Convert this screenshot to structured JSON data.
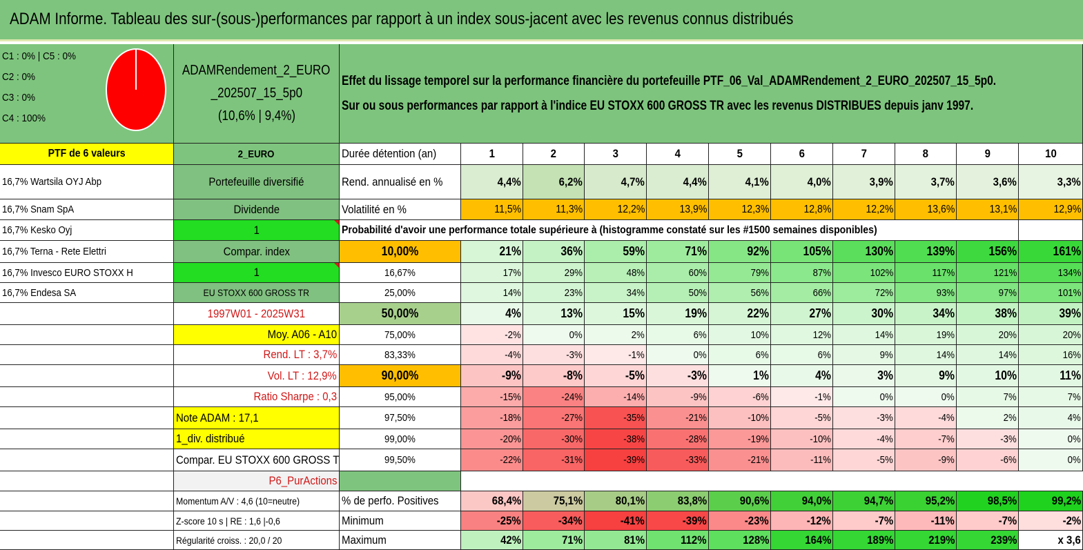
{
  "title": "ADAM Informe. Tableau des sur-(sous-)performances par rapport à un index sous-jacent avec les revenus connus distribués",
  "colors": {
    "header_green": "#7ec47e",
    "mid_green": "#80c080",
    "bright_green": "#22dd22",
    "yellow": "#ffff00",
    "orange": "#ffbf00",
    "pie_red": "#ff0000"
  },
  "pie": {
    "lines": [
      "C1 : 0% | C5 : 0%",
      "C2 : 0%",
      "C3 : 0%",
      "C4 : 100%"
    ],
    "slices": [
      0,
      0,
      0,
      100,
      0
    ]
  },
  "fund": {
    "name_line1": "ADAMRendement_2_EURO",
    "name_line2": "_202507_15_5p0",
    "returns": "(10,6% | 9,4%)"
  },
  "description": {
    "line1": "Effet du lissage temporel sur la performance financière du portefeuille PTF_06_Val_ADAMRendement_2_EURO_202507_15_5p0.",
    "line2": "Sur ou sous performances par rapport à l'indice EU STOXX 600 GROSS TR avec les revenus DISTRIBUES depuis janv 1997."
  },
  "portfolio": {
    "header": "PTF de 6 valeurs",
    "holdings": [
      "16,7% Wartsila OYJ Abp",
      "16,7% Snam SpA",
      "16,7% Kesko Oyj",
      "16,7% Terna - Rete Elettri",
      "16,7% Invesco EURO STOXX H",
      "16,7% Endesa SA"
    ]
  },
  "info": {
    "code": "2_EURO",
    "type": "Portefeuille diversifié",
    "dividend_label": "Dividende",
    "dividend_value": "1",
    "compar_label": "Compar. index",
    "compar_value": "1",
    "index_name": "EU STOXX 600 GROSS TR",
    "period": "1997W01 - 2025W31",
    "moy": "Moy. A06 - A10",
    "rend_lt": "Rend. LT : 3,7%",
    "vol_lt": "Vol. LT : 12,9%",
    "sharpe": "Ratio Sharpe : 0,3",
    "note": "Note ADAM : 17,1",
    "div_distrib": "1_div. distribué",
    "compar_full": "Compar. EU STOXX 600 GROSS TR",
    "category": "P6_PurActions",
    "momentum": "Momentum A/V : 4,6 (10=neutre)",
    "zscore": "Z-score 10 s | RE : 1,6 |-0,6",
    "regularite": "Régularité croiss. : 20,0 / 20"
  },
  "table": {
    "duration_label": "Durée détention (an)",
    "years": [
      "1",
      "2",
      "3",
      "4",
      "5",
      "6",
      "7",
      "8",
      "9",
      "10"
    ],
    "rend_label": "Rend. annualisé en %",
    "rend": [
      "4,4%",
      "6,2%",
      "4,7%",
      "4,4%",
      "4,1%",
      "4,0%",
      "3,9%",
      "3,7%",
      "3,6%",
      "3,3%"
    ],
    "vol_label": "Volatilité en %",
    "vol": [
      "11,5%",
      "11,3%",
      "12,2%",
      "13,9%",
      "12,3%",
      "12,8%",
      "12,2%",
      "13,6%",
      "13,1%",
      "12,9%"
    ],
    "prob_label": "Probabilité d'avoir une performance totale supérieure à (histogramme constaté sur les #1500 semaines disponibles)",
    "prob_rows": [
      {
        "p": "10,00%",
        "v": [
          "21%",
          "36%",
          "59%",
          "71%",
          "92%",
          "105%",
          "130%",
          "139%",
          "156%",
          "161%"
        ]
      },
      {
        "p": "16,67%",
        "v": [
          "17%",
          "29%",
          "48%",
          "60%",
          "79%",
          "87%",
          "102%",
          "117%",
          "121%",
          "134%"
        ]
      },
      {
        "p": "25,00%",
        "v": [
          "14%",
          "23%",
          "34%",
          "50%",
          "56%",
          "66%",
          "72%",
          "93%",
          "97%",
          "101%"
        ]
      },
      {
        "p": "50,00%",
        "v": [
          "4%",
          "13%",
          "15%",
          "19%",
          "22%",
          "27%",
          "30%",
          "34%",
          "38%",
          "39%"
        ]
      },
      {
        "p": "75,00%",
        "v": [
          "-2%",
          "0%",
          "2%",
          "6%",
          "10%",
          "12%",
          "14%",
          "19%",
          "20%",
          "20%"
        ]
      },
      {
        "p": "83,33%",
        "v": [
          "-4%",
          "-3%",
          "-1%",
          "0%",
          "6%",
          "6%",
          "9%",
          "14%",
          "14%",
          "16%"
        ]
      },
      {
        "p": "90,00%",
        "v": [
          "-9%",
          "-8%",
          "-5%",
          "-3%",
          "1%",
          "4%",
          "3%",
          "9%",
          "10%",
          "11%"
        ]
      },
      {
        "p": "95,00%",
        "v": [
          "-15%",
          "-24%",
          "-14%",
          "-9%",
          "-6%",
          "-1%",
          "0%",
          "0%",
          "7%",
          "7%"
        ]
      },
      {
        "p": "97,50%",
        "v": [
          "-18%",
          "-27%",
          "-35%",
          "-21%",
          "-10%",
          "-5%",
          "-3%",
          "-4%",
          "2%",
          "4%"
        ]
      },
      {
        "p": "99,00%",
        "v": [
          "-20%",
          "-30%",
          "-38%",
          "-28%",
          "-19%",
          "-10%",
          "-4%",
          "-7%",
          "-3%",
          "0%"
        ]
      },
      {
        "p": "99,50%",
        "v": [
          "-22%",
          "-31%",
          "-39%",
          "-33%",
          "-21%",
          "-11%",
          "-5%",
          "-9%",
          "-6%",
          "0%"
        ]
      }
    ],
    "pos_label": "% de perfo. Positives",
    "pos": [
      "68,4%",
      "75,1%",
      "80,1%",
      "83,8%",
      "90,6%",
      "94,0%",
      "94,7%",
      "95,2%",
      "98,5%",
      "99,2%"
    ],
    "min_label": "Minimum",
    "min": [
      "-25%",
      "-34%",
      "-41%",
      "-39%",
      "-23%",
      "-12%",
      "-7%",
      "-11%",
      "-7%",
      "-2%"
    ],
    "max_label": "Maximum",
    "max": [
      "42%",
      "71%",
      "81%",
      "112%",
      "128%",
      "164%",
      "189%",
      "219%",
      "239%",
      "x 3,6"
    ]
  }
}
